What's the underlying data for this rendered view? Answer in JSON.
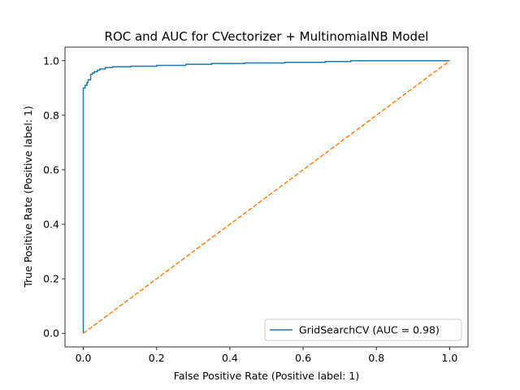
{
  "chart_data": {
    "type": "line",
    "title": "ROC and AUC for CVectorizer + MultinomialNB Model",
    "xlabel": "False Positive Rate (Positive label: 1)",
    "ylabel": "True Positive Rate (Positive label: 1)",
    "xlim": [
      -0.05,
      1.05
    ],
    "ylim": [
      -0.05,
      1.05
    ],
    "xticks": [
      "0.0",
      "0.2",
      "0.4",
      "0.6",
      "0.8",
      "1.0"
    ],
    "yticks": [
      "0.0",
      "0.2",
      "0.4",
      "0.6",
      "0.8",
      "1.0"
    ],
    "grid": false,
    "legend_position": "lower-right",
    "series": [
      {
        "name": "GridSearchCV (AUC = 0.98)",
        "color": "#1f77b4",
        "style": "solid",
        "x": [
          0.0,
          0.0,
          0.005,
          0.005,
          0.01,
          0.01,
          0.013,
          0.013,
          0.02,
          0.02,
          0.025,
          0.025,
          0.03,
          0.03,
          0.038,
          0.038,
          0.045,
          0.045,
          0.06,
          0.06,
          0.08,
          0.08,
          0.13,
          0.13,
          0.2,
          0.2,
          0.28,
          0.28,
          0.35,
          0.35,
          0.44,
          0.44,
          0.55,
          0.55,
          0.66,
          0.66,
          0.73,
          0.73,
          1.0
        ],
        "y": [
          0.0,
          0.9,
          0.9,
          0.91,
          0.91,
          0.92,
          0.92,
          0.93,
          0.93,
          0.95,
          0.95,
          0.955,
          0.955,
          0.96,
          0.96,
          0.965,
          0.965,
          0.97,
          0.97,
          0.975,
          0.975,
          0.978,
          0.978,
          0.98,
          0.98,
          0.983,
          0.983,
          0.987,
          0.987,
          0.99,
          0.99,
          0.992,
          0.992,
          0.994,
          0.994,
          0.997,
          0.997,
          1.0,
          1.0
        ]
      },
      {
        "name": "",
        "color": "#ff7f0e",
        "style": "dashed",
        "x": [
          0.0,
          1.0
        ],
        "y": [
          0.0,
          1.0
        ]
      }
    ]
  }
}
